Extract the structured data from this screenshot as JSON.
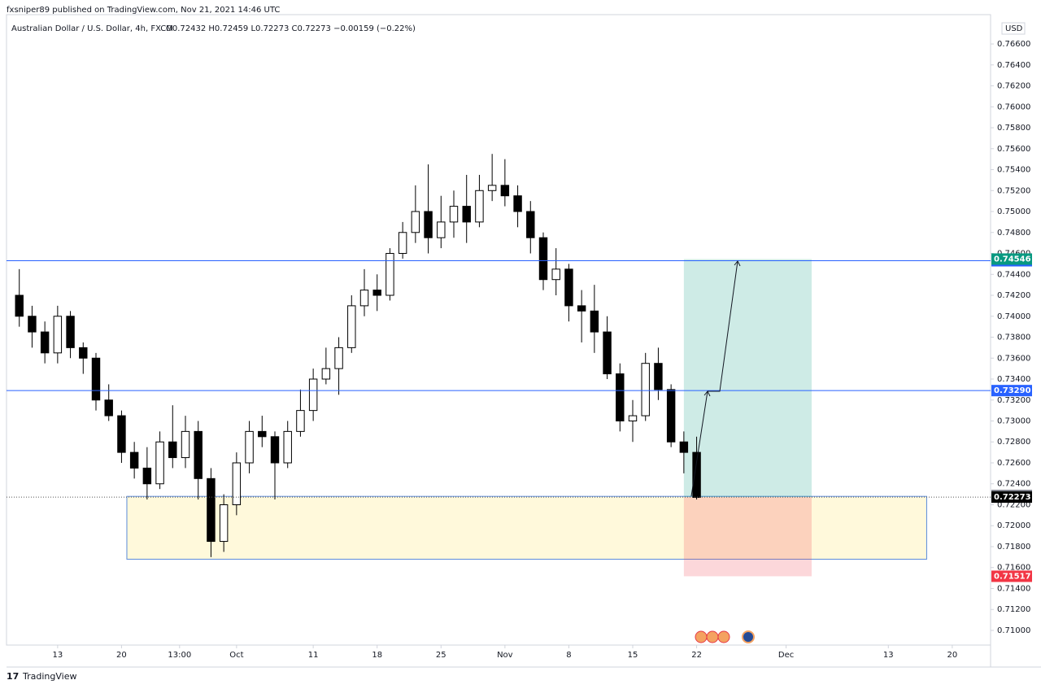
{
  "header": "fxsniper89 published on TradingView.com, Nov 21, 2021 14:46 UTC",
  "footer": "TradingView",
  "chart_data": {
    "type": "candlestick",
    "title": "Australian Dollar / U.S. Dollar, 4h, FXCM",
    "legend_values": "O0.72432 H0.72459 L0.72273 C0.72273 −0.00159 (−0.22%)",
    "currency": "USD",
    "colors": {
      "up": "#ffffff",
      "down": "#000000",
      "wick": "#000000"
    },
    "x": [
      "2021-09-08",
      "2021-09-09",
      "2021-09-10",
      "2021-09-13",
      "2021-09-14",
      "2021-09-15",
      "2021-09-16",
      "2021-09-17",
      "2021-09-20",
      "2021-09-21",
      "2021-09-22",
      "2021-09-23",
      "2021-09-24",
      "2021-09-27",
      "2021-09-28",
      "2021-09-29",
      "2021-09-30",
      "2021-10-01",
      "2021-10-04",
      "2021-10-05",
      "2021-10-06",
      "2021-10-07",
      "2021-10-08",
      "2021-10-11",
      "2021-10-12",
      "2021-10-13",
      "2021-10-14",
      "2021-10-15",
      "2021-10-18",
      "2021-10-19",
      "2021-10-20",
      "2021-10-21",
      "2021-10-22",
      "2021-10-25",
      "2021-10-26",
      "2021-10-27",
      "2021-10-28",
      "2021-10-29",
      "2021-11-01",
      "2021-11-02",
      "2021-11-03",
      "2021-11-04",
      "2021-11-05",
      "2021-11-08",
      "2021-11-09",
      "2021-11-10",
      "2021-11-11",
      "2021-11-12",
      "2021-11-15",
      "2021-11-16",
      "2021-11-17",
      "2021-11-18",
      "2021-11-19",
      "2021-11-22"
    ],
    "open": [
      0.742,
      0.74,
      0.7385,
      0.7365,
      0.74,
      0.737,
      0.736,
      0.732,
      0.7305,
      0.727,
      0.7255,
      0.724,
      0.728,
      0.7265,
      0.729,
      0.7245,
      0.7185,
      0.722,
      0.726,
      0.729,
      0.7285,
      0.726,
      0.729,
      0.731,
      0.734,
      0.735,
      0.737,
      0.741,
      0.7425,
      0.742,
      0.746,
      0.748,
      0.75,
      0.7475,
      0.749,
      0.7505,
      0.749,
      0.752,
      0.7525,
      0.7515,
      0.75,
      0.7475,
      0.7435,
      0.7445,
      0.741,
      0.7405,
      0.7385,
      0.7345,
      0.73,
      0.7305,
      0.7355,
      0.733,
      0.728,
      0.727
    ],
    "high": [
      0.7445,
      0.741,
      0.7395,
      0.741,
      0.7405,
      0.7375,
      0.7365,
      0.7335,
      0.731,
      0.728,
      0.7275,
      0.729,
      0.7315,
      0.7305,
      0.73,
      0.7255,
      0.723,
      0.727,
      0.73,
      0.7305,
      0.729,
      0.73,
      0.733,
      0.735,
      0.737,
      0.738,
      0.742,
      0.7445,
      0.744,
      0.7465,
      0.749,
      0.7525,
      0.7545,
      0.7515,
      0.752,
      0.7535,
      0.7535,
      0.7555,
      0.755,
      0.7525,
      0.751,
      0.748,
      0.7465,
      0.745,
      0.7425,
      0.743,
      0.74,
      0.7355,
      0.732,
      0.7365,
      0.737,
      0.7335,
      0.729,
      0.7285
    ],
    "low": [
      0.739,
      0.737,
      0.7355,
      0.7355,
      0.736,
      0.7345,
      0.731,
      0.73,
      0.726,
      0.7245,
      0.7225,
      0.7235,
      0.7255,
      0.7255,
      0.7225,
      0.717,
      0.7175,
      0.721,
      0.725,
      0.7275,
      0.7225,
      0.7255,
      0.7285,
      0.73,
      0.7335,
      0.7325,
      0.7365,
      0.74,
      0.7405,
      0.7415,
      0.7455,
      0.747,
      0.746,
      0.7465,
      0.7475,
      0.747,
      0.7485,
      0.751,
      0.7505,
      0.7485,
      0.746,
      0.7425,
      0.742,
      0.7395,
      0.7375,
      0.7365,
      0.734,
      0.729,
      0.728,
      0.73,
      0.732,
      0.7275,
      0.725,
      0.7225
    ],
    "close": [
      0.74,
      0.7385,
      0.7365,
      0.74,
      0.737,
      0.736,
      0.732,
      0.7305,
      0.727,
      0.7255,
      0.724,
      0.728,
      0.7265,
      0.729,
      0.7245,
      0.7185,
      0.722,
      0.726,
      0.729,
      0.7285,
      0.726,
      0.729,
      0.731,
      0.734,
      0.735,
      0.737,
      0.741,
      0.7425,
      0.742,
      0.746,
      0.748,
      0.75,
      0.7475,
      0.749,
      0.7505,
      0.749,
      0.752,
      0.7525,
      0.7515,
      0.75,
      0.7475,
      0.7435,
      0.7445,
      0.741,
      0.7405,
      0.7385,
      0.7345,
      0.73,
      0.7305,
      0.7355,
      0.733,
      0.728,
      0.727,
      0.7227
    ],
    "xlim": [
      "2021-09-07",
      "2021-12-23"
    ],
    "xticks": [
      {
        "value": "2021-09-13",
        "label": "13"
      },
      {
        "value": "2021-09-20",
        "label": "20"
      },
      {
        "value": "2021-09-24T13:00",
        "label": "13:00"
      },
      {
        "value": "2021-10-01",
        "label": "Oct"
      },
      {
        "value": "2021-10-11",
        "label": "11"
      },
      {
        "value": "2021-10-18",
        "label": "18"
      },
      {
        "value": "2021-10-25",
        "label": "25"
      },
      {
        "value": "2021-11-01",
        "label": "Nov"
      },
      {
        "value": "2021-11-08",
        "label": "8"
      },
      {
        "value": "2021-11-15",
        "label": "15"
      },
      {
        "value": "2021-11-22",
        "label": "22"
      },
      {
        "value": "2021-12-01",
        "label": "Dec"
      },
      {
        "value": "2021-12-13",
        "label": "13"
      },
      {
        "value": "2021-12-20",
        "label": "20"
      }
    ],
    "ylim": [
      0.7086,
      0.7688
    ],
    "yticks": [
      {
        "value": 0.71,
        "label": "0.71000"
      },
      {
        "value": 0.712,
        "label": "0.71200"
      },
      {
        "value": 0.714,
        "label": "0.71400"
      },
      {
        "value": 0.716,
        "label": "0.71600"
      },
      {
        "value": 0.718,
        "label": "0.71800"
      },
      {
        "value": 0.72,
        "label": "0.72000"
      },
      {
        "value": 0.722,
        "label": "0.72200"
      },
      {
        "value": 0.724,
        "label": "0.72400"
      },
      {
        "value": 0.726,
        "label": "0.72600"
      },
      {
        "value": 0.728,
        "label": "0.72800"
      },
      {
        "value": 0.73,
        "label": "0.73000"
      },
      {
        "value": 0.732,
        "label": "0.73200"
      },
      {
        "value": 0.734,
        "label": "0.73400"
      },
      {
        "value": 0.736,
        "label": "0.73600"
      },
      {
        "value": 0.738,
        "label": "0.73800"
      },
      {
        "value": 0.74,
        "label": "0.74000"
      },
      {
        "value": 0.742,
        "label": "0.74200"
      },
      {
        "value": 0.744,
        "label": "0.74400"
      },
      {
        "value": 0.746,
        "label": "0.74600"
      },
      {
        "value": 0.748,
        "label": "0.74800"
      },
      {
        "value": 0.75,
        "label": "0.75000"
      },
      {
        "value": 0.752,
        "label": "0.75200"
      },
      {
        "value": 0.754,
        "label": "0.75400"
      },
      {
        "value": 0.756,
        "label": "0.75600"
      },
      {
        "value": 0.758,
        "label": "0.75800"
      },
      {
        "value": 0.76,
        "label": "0.76000"
      },
      {
        "value": 0.762,
        "label": "0.76200"
      },
      {
        "value": 0.764,
        "label": "0.76400"
      },
      {
        "value": 0.766,
        "label": "0.76600"
      }
    ],
    "levels": [
      {
        "value": 0.7453,
        "label": "0.74530",
        "color": "#2962ff"
      },
      {
        "value": 0.7329,
        "label": "0.73290",
        "color": "#2962ff"
      }
    ],
    "zone": {
      "x": [
        "2021-09-20T10:00",
        "2021-12-16"
      ],
      "y": [
        0.7168,
        0.7228
      ],
      "color": "#fff9db",
      "border": "#5b8bd9"
    },
    "position": {
      "x": [
        "2021-11-19",
        "2021-12-03"
      ],
      "target": {
        "value": 0.74546,
        "label": "0.74546",
        "color": "#089981"
      },
      "stop": {
        "value": 0.71517,
        "label": "0.71517",
        "color": "#f23645"
      }
    },
    "marker": {
      "value": 0.72288,
      "label": "0.72288",
      "color": "#787b86"
    },
    "last_price": {
      "value": 0.72273,
      "label": "0.72273",
      "color": "#000000"
    }
  }
}
